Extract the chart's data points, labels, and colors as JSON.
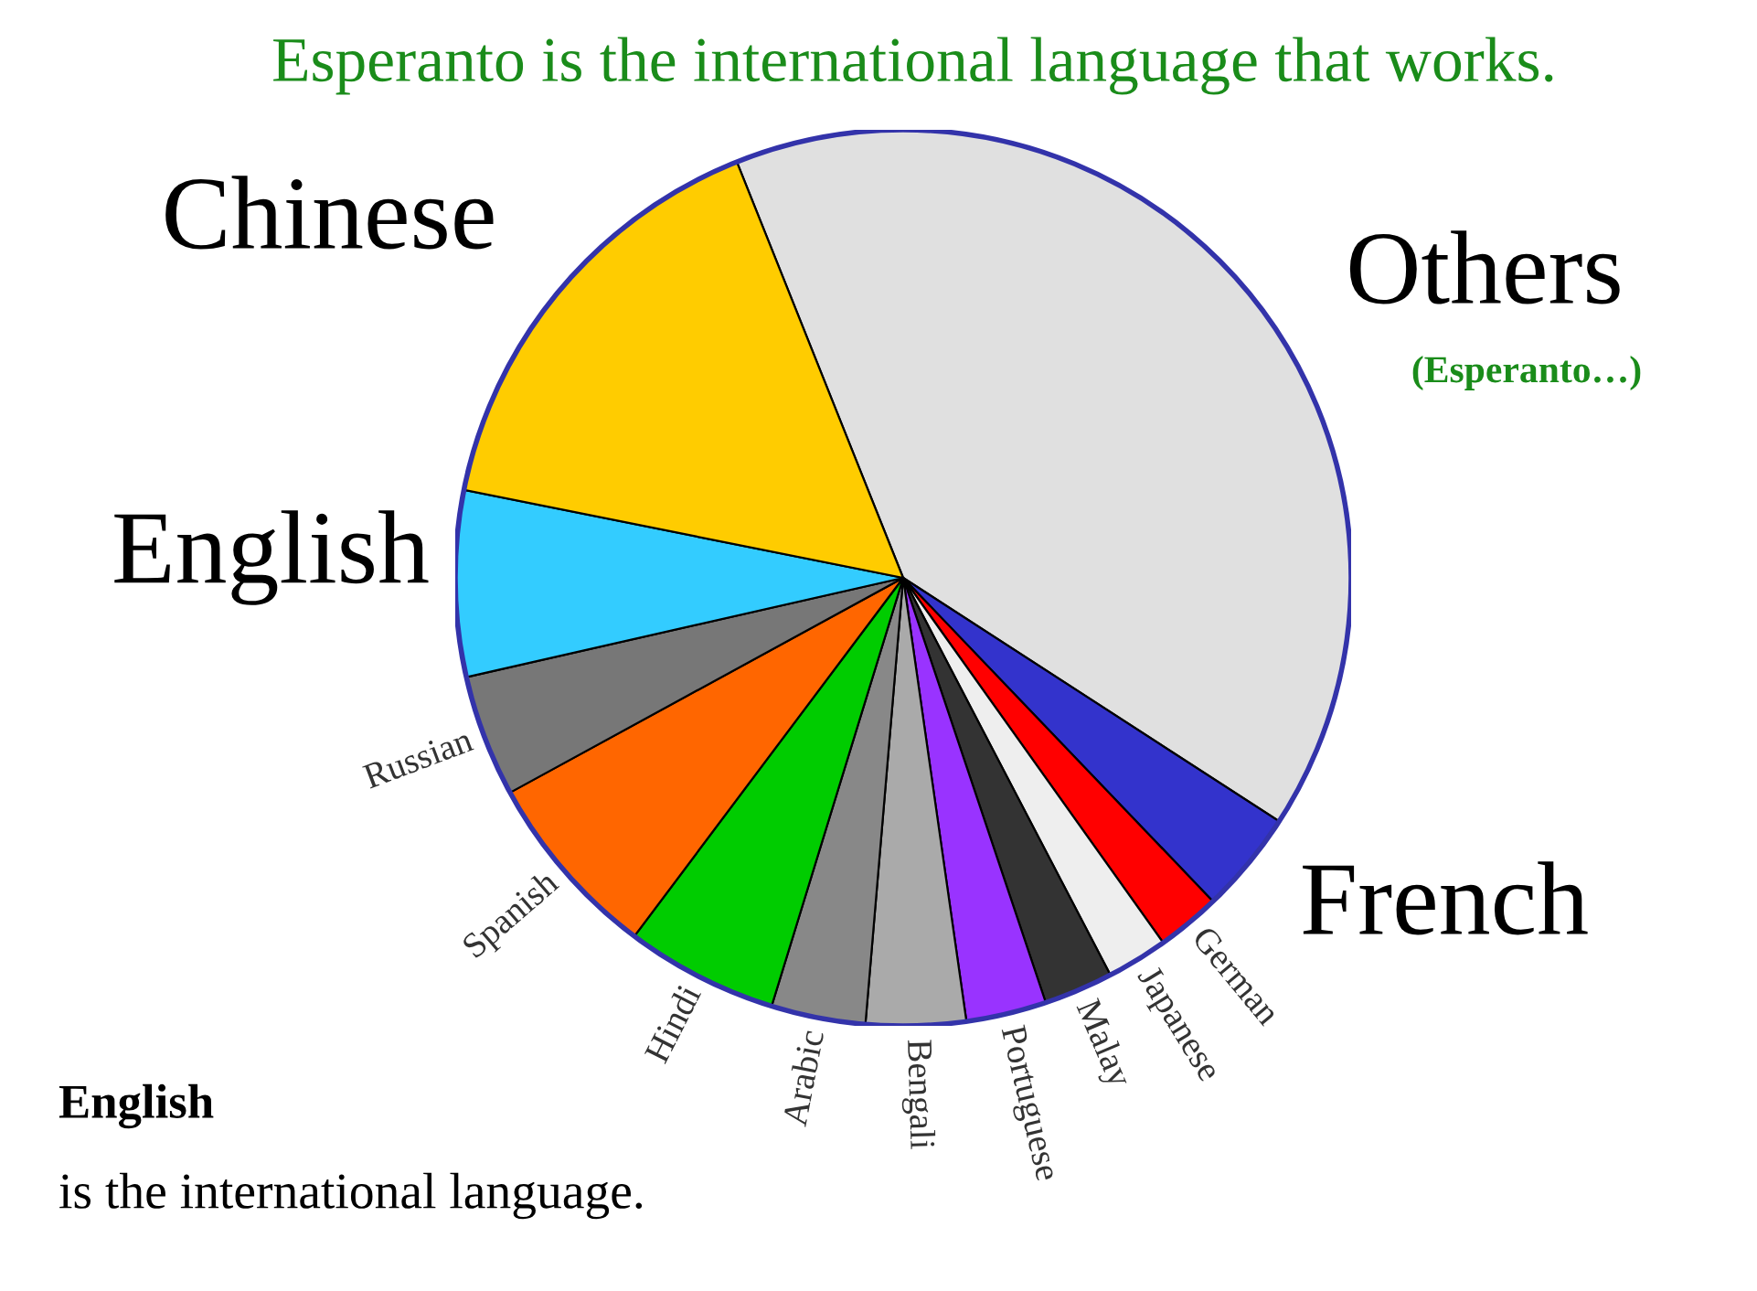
{
  "chart_data": {
    "type": "pie",
    "title": "Esperanto is the international language that works.",
    "categories": [
      "Others",
      "French",
      "German",
      "Japanese",
      "Malay",
      "Portuguese",
      "Bengali",
      "Arabic",
      "Hindi",
      "Spanish",
      "Russian",
      "English",
      "Chinese"
    ],
    "values": [
      40.2,
      3.7,
      2.3,
      2.2,
      2.5,
      2.9,
      3.6,
      3.4,
      5.5,
      6.8,
      4.4,
      6.7,
      15.8
    ],
    "colors": [
      "#e0e0e0",
      "#3333cc",
      "#ff0000",
      "#eeeeee",
      "#333333",
      "#9933ff",
      "#aaaaaa",
      "#888888",
      "#00cc00",
      "#ff6600",
      "#777777",
      "#33ccff",
      "#ffcc00"
    ],
    "annotations": [
      "(Esperanto…)",
      "English",
      "is the international language."
    ],
    "legend": false
  }
}
